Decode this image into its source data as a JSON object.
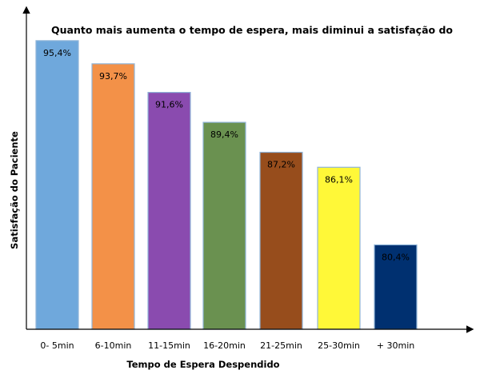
{
  "chart_data": {
    "type": "bar",
    "title": "Quanto mais aumenta o tempo de espera, mais diminui a satisfação do",
    "xlabel": "Tempo de Espera Despendido",
    "ylabel": "Satisfação do Paciente",
    "categories": [
      "0- 5min",
      "6-10min",
      "11-15min",
      "16-20min",
      "21-25min",
      "25-30min",
      "+ 30min"
    ],
    "values": [
      95.4,
      93.7,
      91.6,
      89.4,
      87.2,
      86.1,
      80.4
    ],
    "data_labels": [
      "95,4%",
      "93,7%",
      "91,6%",
      "89,4%",
      "87,2%",
      "86,1%",
      "80,4%"
    ],
    "colors": [
      "#6FA8DC",
      "#F39148",
      "#8A4BAF",
      "#6A9150",
      "#974D1C",
      "#FFF838",
      "#003070"
    ],
    "bar_border_color": "#8FB4D8",
    "ylim": [
      74.2,
      97.8
    ],
    "grid": false,
    "legend": "none"
  }
}
